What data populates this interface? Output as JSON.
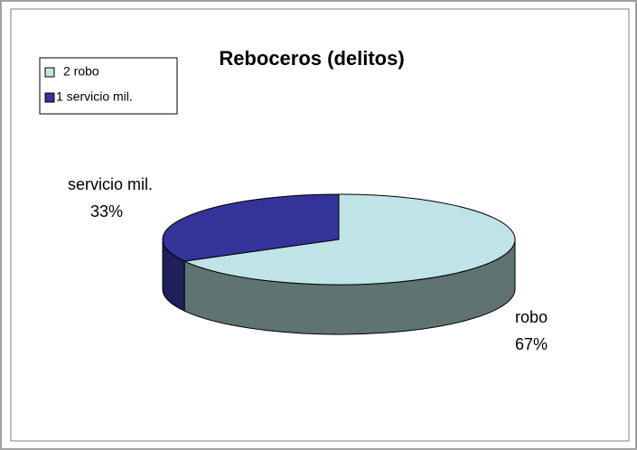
{
  "chart_data": {
    "type": "pie3d",
    "title": "Reboceros (delitos)",
    "categories": [
      "robo",
      "servicio mil."
    ],
    "values": [
      67,
      33
    ],
    "value_labels": [
      "67%",
      "33%"
    ],
    "colors": [
      "#bfe3e6",
      "#333399"
    ],
    "side_colors": [
      "#5f7373",
      "#1f1f5c"
    ],
    "legend": [
      {
        "label": "2 robo",
        "color": "#bfe3e6"
      },
      {
        "label": "1 servicio mil.",
        "color": "#333399"
      }
    ],
    "legend_position": "upper-left"
  }
}
